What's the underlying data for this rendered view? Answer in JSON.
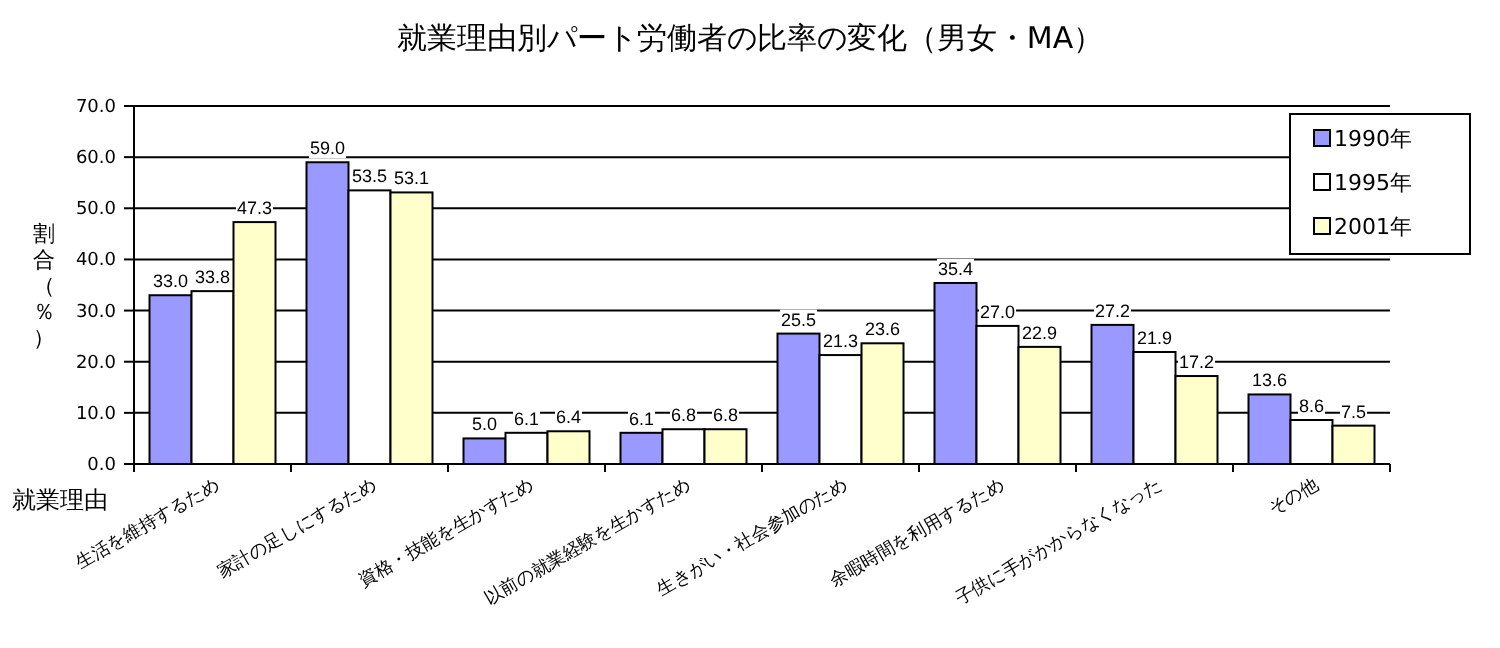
{
  "chart_data": {
    "type": "bar",
    "title": "就業理由別パート労働者の比率の変化（男女・MA）",
    "xlabel": "就業理由",
    "ylabel": "割合（％）",
    "categories": [
      "生活を維持するため",
      "家計の足しにするため",
      "資格・技能を生かすため",
      "以前の就業経験を生かすため",
      "生きがい・社会参加のため",
      "余暇時間を利用するため",
      "子供に手がかからなくなった",
      "その他"
    ],
    "series": [
      {
        "name": "1990年",
        "color": "#9999ff",
        "values": [
          33.0,
          59.0,
          5.0,
          6.1,
          25.5,
          35.4,
          27.2,
          13.6
        ],
        "value_labels": [
          "33.0",
          "59.0",
          "5.0",
          "6.1",
          "25.5",
          "35.4",
          "27.2",
          "13.6"
        ]
      },
      {
        "name": "1995年",
        "color": "#ffffff",
        "values": [
          33.8,
          53.5,
          6.1,
          6.8,
          21.3,
          27.0,
          21.9,
          8.6
        ],
        "value_labels": [
          "33.8",
          "53.5",
          "6.1",
          "6.8",
          "21.3",
          "27.0",
          "21.9",
          "8.6"
        ]
      },
      {
        "name": "2001年",
        "color": "#ffffcc",
        "values": [
          47.3,
          53.1,
          6.4,
          6.8,
          23.6,
          22.9,
          17.2,
          7.5
        ],
        "value_labels": [
          "47.3",
          "53.1",
          "6.4",
          "6.8",
          "23.6",
          "22.9",
          "17.2",
          "7.5"
        ]
      }
    ],
    "ylim": [
      0,
      70
    ],
    "yticks": [
      {
        "value": 0,
        "label": "0.0"
      },
      {
        "value": 10,
        "label": "10.0"
      },
      {
        "value": 20,
        "label": "20.0"
      },
      {
        "value": 30,
        "label": "30.0"
      },
      {
        "value": 40,
        "label": "40.0"
      },
      {
        "value": 50,
        "label": "50.0"
      },
      {
        "value": 60,
        "label": "60.0"
      },
      {
        "value": 70,
        "label": "70.0"
      }
    ],
    "grid": "y",
    "legend": "top right"
  }
}
